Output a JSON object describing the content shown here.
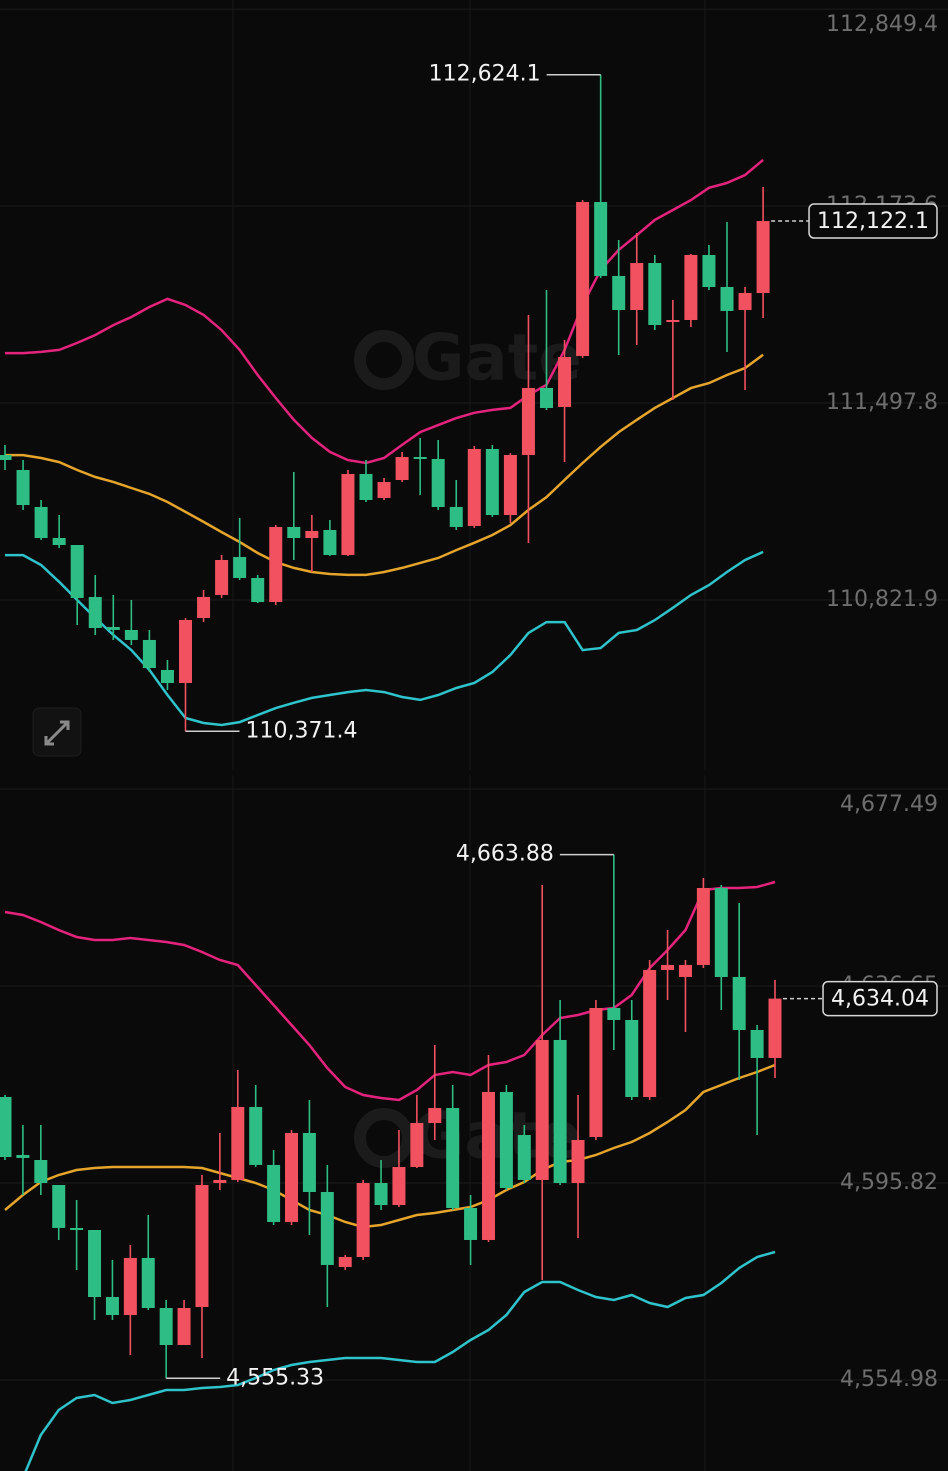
{
  "watermark": "Gate",
  "chart_data": [
    {
      "type": "candlestick",
      "up_color": "#f2515f",
      "down_color": "#2ebd84",
      "grid": true,
      "ylim": [
        110238.6,
        112880.5
      ],
      "yticks": [
        {
          "value": 110821.9,
          "label": "110,821.9"
        },
        {
          "value": 111497.8,
          "label": "111,497.8"
        },
        {
          "value": 112173.6,
          "label": "112,173.6"
        },
        {
          "value": 112849.4,
          "label": "112,849.4"
        }
      ],
      "open": [
        111319.4,
        111267.9,
        111141.0,
        111034.6,
        111010.6,
        110832.2,
        110729.3,
        110719.0,
        110684.7,
        110581.7,
        110537.1,
        110760.1,
        110839.1,
        110969.4,
        110897.4,
        110815.0,
        111072.4,
        111034.6,
        111062.1,
        110976.3,
        111254.2,
        111171.9,
        111233.6,
        111312.5,
        111305.7,
        111141.0,
        111075.8,
        111340.0,
        111113.5,
        111319.4,
        111549.3,
        111484.1,
        111659.1,
        112187.4,
        111933.6,
        111816.9,
        111978.1,
        111775.7,
        111782.6,
        112005.6,
        111895.8,
        111816.9,
        111875.2
      ],
      "high": [
        111353.7,
        111302.2,
        111165.0,
        111113.5,
        111010.6,
        110907.7,
        110839.1,
        110821.9,
        110719.0,
        110616.0,
        110760.1,
        110856.2,
        110976.3,
        111103.2,
        110907.7,
        111079.2,
        111261.1,
        111113.5,
        111096.4,
        111267.9,
        111302.2,
        111240.5,
        111329.7,
        111377.7,
        111370.9,
        111233.6,
        111350.3,
        111353.7,
        111326.3,
        111799.7,
        111885.5,
        111714.0,
        112194.3,
        112624.1,
        112057.1,
        112081.1,
        112005.6,
        111851.2,
        112009.0,
        112039.9,
        112118.8,
        111895.8,
        112238.9
      ],
      "low": [
        111267.9,
        111130.7,
        111027.8,
        111000.3,
        110736.1,
        110701.8,
        110684.7,
        110667.5,
        110574.9,
        110513.1,
        110371.4,
        110746.4,
        110828.8,
        110890.5,
        110811.6,
        110804.7,
        110959.1,
        110918.0,
        110972.9,
        110972.9,
        111158.1,
        111165.0,
        111226.8,
        111182.2,
        111130.7,
        111062.1,
        111068.9,
        111106.7,
        111086.1,
        111017.5,
        111473.8,
        111295.4,
        111652.2,
        111926.7,
        111662.5,
        111696.8,
        111748.3,
        111508.1,
        111758.6,
        111885.5,
        111672.8,
        111542.4,
        111789.4
      ],
      "close": [
        111302.2,
        111147.8,
        111034.6,
        111010.6,
        110828.8,
        110725.8,
        110719.0,
        110684.7,
        110588.6,
        110537.1,
        110753.3,
        110832.2,
        110959.1,
        110897.4,
        110815.0,
        111072.4,
        111034.6,
        111058.6,
        110976.3,
        111254.2,
        111165.0,
        111226.8,
        111312.5,
        111305.7,
        111141.0,
        111072.4,
        111340.0,
        111113.5,
        111319.4,
        111549.3,
        111480.7,
        111655.6,
        112187.4,
        111933.6,
        111816.9,
        111978.1,
        111765.4,
        111782.6,
        112005.6,
        111895.8,
        111813.5,
        111875.2,
        112122.1
      ],
      "bands": [
        {
          "color": "#e3237c",
          "values": [
            111669,
            111669,
            111673,
            111680,
            111704,
            111731,
            111765,
            111793,
            111827,
            111855,
            111834,
            111800,
            111748,
            111680,
            111594,
            111515,
            111440,
            111378,
            111330,
            111302,
            111292,
            111309,
            111354,
            111398,
            111422,
            111446,
            111464,
            111474,
            111481,
            111525,
            111560,
            111680,
            111834,
            111954,
            112023,
            112074,
            112126,
            112160,
            112194,
            112236,
            112253,
            112280,
            112332
          ]
        },
        {
          "color": "#e5a52c",
          "values": [
            111319,
            111319,
            111309,
            111295,
            111268,
            111244,
            111227,
            111206,
            111186,
            111158,
            111124,
            111090,
            111055,
            111021,
            110983,
            110952,
            110932,
            110918,
            110911,
            110908,
            110908,
            110918,
            110932,
            110949,
            110966,
            110993,
            111018,
            111045,
            111079,
            111131,
            111175,
            111234,
            111292,
            111347,
            111398,
            111440,
            111481,
            111515,
            111549,
            111566,
            111594,
            111618,
            111663
          ]
        },
        {
          "color": "#2fc3cb",
          "values": [
            110976,
            110976,
            110942,
            110884,
            110822,
            110760,
            110702,
            110650,
            110582,
            110496,
            110417,
            110400,
            110393,
            110403,
            110427,
            110451,
            110469,
            110486,
            110496,
            110506,
            110513,
            110506,
            110489,
            110479,
            110496,
            110520,
            110537,
            110575,
            110633,
            110709,
            110746,
            110746,
            110650,
            110657,
            110709,
            110719,
            110753,
            110795,
            110839,
            110873,
            110918,
            110959,
            110987
          ]
        }
      ],
      "high_label": {
        "value": 112624.1,
        "label": "112,624.1"
      },
      "low_label": {
        "value": 110371.4,
        "label": "110,371.4"
      },
      "last_price": {
        "value": 112122.1,
        "label": "112,122.1"
      }
    },
    {
      "type": "candlestick",
      "up_color": "#f2515f",
      "down_color": "#2ebd84",
      "grid": true,
      "ylim": [
        4536.11,
        4680.39
      ],
      "yticks": [
        {
          "value": 4554.98,
          "label": "4,554.98"
        },
        {
          "value": 4595.82,
          "label": "4,595.82"
        },
        {
          "value": 4636.65,
          "label": "4,636.65"
        },
        {
          "value": 4677.49,
          "label": "4,677.49"
        }
      ],
      "open": [
        4613.64,
        4601.62,
        4600.58,
        4595.4,
        4586.49,
        4586.07,
        4572.18,
        4568.45,
        4580.27,
        4569.9,
        4562.23,
        4570.11,
        4595.81,
        4596.44,
        4611.57,
        4599.55,
        4587.73,
        4606.18,
        4593.95,
        4578.4,
        4580.47,
        4595.81,
        4591.25,
        4599.13,
        4608.25,
        4611.36,
        4590.63,
        4584.0,
        4614.68,
        4605.76,
        4596.44,
        4625.46,
        4595.81,
        4605.35,
        4632.09,
        4629.6,
        4613.64,
        4639.97,
        4638.52,
        4641.01,
        4656.97,
        4638.52,
        4627.53,
        4621.73
      ],
      "high": [
        4614.06,
        4607.84,
        4607.84,
        4595.4,
        4592.29,
        4586.07,
        4579.85,
        4582.96,
        4589.18,
        4571.56,
        4571.56,
        4597.47,
        4606.18,
        4619.24,
        4616.13,
        4602.65,
        4606.8,
        4613.02,
        4599.55,
        4580.89,
        4596.44,
        4600.58,
        4606.8,
        4614.06,
        4624.42,
        4616.13,
        4593.33,
        4622.35,
        4616.13,
        4607.84,
        4657.59,
        4633.75,
        4614.06,
        4633.75,
        4663.88,
        4633.75,
        4642.04,
        4648.26,
        4642.04,
        4659.04,
        4657.59,
        4653.86,
        4628.57,
        4637.9
      ],
      "low": [
        4600.58,
        4593.33,
        4593.33,
        4584.0,
        4577.78,
        4567.41,
        4567.41,
        4560.16,
        4569.49,
        4555.33,
        4562.23,
        4559.54,
        4594.36,
        4596.02,
        4599.13,
        4587.11,
        4587.11,
        4585.03,
        4570.11,
        4577.78,
        4579.85,
        4590.22,
        4590.84,
        4598.92,
        4604.73,
        4590.22,
        4578.82,
        4583.58,
        4594.36,
        4595.81,
        4575.71,
        4595.4,
        4584.41,
        4604.73,
        4623.38,
        4613.02,
        4613.02,
        4633.75,
        4627.12,
        4640.38,
        4631.68,
        4617.17,
        4605.76,
        4617.58
      ],
      "close": [
        4601.2,
        4601.0,
        4595.81,
        4586.49,
        4586.07,
        4572.18,
        4568.45,
        4580.27,
        4569.9,
        4562.23,
        4569.9,
        4595.4,
        4596.44,
        4611.57,
        4599.55,
        4587.73,
        4606.18,
        4593.95,
        4578.82,
        4580.47,
        4595.81,
        4591.25,
        4599.13,
        4608.25,
        4611.36,
        4590.63,
        4584.0,
        4614.68,
        4594.78,
        4596.44,
        4625.46,
        4595.81,
        4604.73,
        4632.09,
        4629.6,
        4613.64,
        4639.97,
        4641.01,
        4641.01,
        4656.97,
        4638.52,
        4627.53,
        4621.73,
        4634.04
      ],
      "bands": [
        {
          "color": "#e3237c",
          "values": [
            4651.99,
            4651.37,
            4649.92,
            4648.26,
            4646.81,
            4646.19,
            4646.19,
            4646.6,
            4646.19,
            4645.77,
            4645.15,
            4643.7,
            4642.04,
            4641.01,
            4636.86,
            4632.71,
            4628.57,
            4624.42,
            4619.65,
            4615.71,
            4614.06,
            4613.43,
            4613.02,
            4615.09,
            4618.2,
            4618.82,
            4618.2,
            4620.28,
            4620.9,
            4622.35,
            4626.49,
            4630.02,
            4630.64,
            4631.68,
            4632.09,
            4634.79,
            4640.38,
            4644.11,
            4648.26,
            4656.55,
            4656.97,
            4656.97,
            4657.17,
            4658.21
          ]
        },
        {
          "color": "#e5a52c",
          "values": [
            4590.22,
            4593.33,
            4596.02,
            4597.47,
            4598.51,
            4598.92,
            4599.13,
            4599.13,
            4599.13,
            4599.13,
            4599.13,
            4598.92,
            4597.89,
            4596.85,
            4595.81,
            4594.36,
            4592.29,
            4590.22,
            4589.18,
            4587.73,
            4586.69,
            4587.11,
            4588.14,
            4589.18,
            4589.6,
            4590.22,
            4590.84,
            4592.29,
            4594.36,
            4596.02,
            4598.51,
            4600.17,
            4600.58,
            4601.62,
            4603.07,
            4604.31,
            4606.18,
            4608.46,
            4610.95,
            4614.68,
            4616.13,
            4617.58,
            4618.82,
            4620.28
          ]
        },
        {
          "color": "#2fc3cb",
          "values": [
            null,
            4534.66,
            4543.57,
            4548.76,
            4551.24,
            4551.87,
            4550.21,
            4550.83,
            4551.87,
            4552.9,
            4552.9,
            4553.32,
            4553.52,
            4553.94,
            4555.39,
            4557.05,
            4558.09,
            4558.71,
            4559.12,
            4559.54,
            4559.54,
            4559.54,
            4559.12,
            4558.71,
            4558.71,
            4560.78,
            4563.27,
            4565.34,
            4568.45,
            4573.22,
            4575.29,
            4575.29,
            4573.63,
            4572.18,
            4571.56,
            4572.6,
            4570.94,
            4570.11,
            4571.97,
            4572.6,
            4575.08,
            4578.19,
            4580.47,
            4581.51
          ]
        }
      ],
      "high_label": {
        "value": 4663.88,
        "label": "4,663.88"
      },
      "low_label": {
        "value": 4555.33,
        "label": "4,555.33"
      },
      "last_price": {
        "value": 4634.04,
        "label": "4,634.04"
      }
    }
  ]
}
